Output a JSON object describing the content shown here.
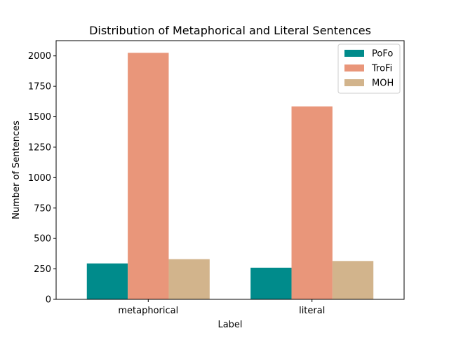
{
  "chart_data": {
    "type": "bar",
    "title": "Distribution of Metaphorical and Literal Sentences",
    "xlabel": "Label",
    "ylabel": "Number of Sentences",
    "categories": [
      "metaphorical",
      "literal"
    ],
    "series": [
      {
        "name": "PoFo",
        "color": "#008b8b",
        "values": [
          295,
          260
        ]
      },
      {
        "name": "TroFi",
        "color": "#e9967a",
        "values": [
          2025,
          1585
        ]
      },
      {
        "name": "MOH",
        "color": "#d2b48c",
        "values": [
          330,
          315
        ]
      }
    ],
    "ylim": [
      0,
      2125
    ],
    "yticks": [
      0,
      250,
      500,
      750,
      1000,
      1250,
      1500,
      1750,
      2000
    ],
    "grid": false,
    "legend_position": "top-right"
  }
}
